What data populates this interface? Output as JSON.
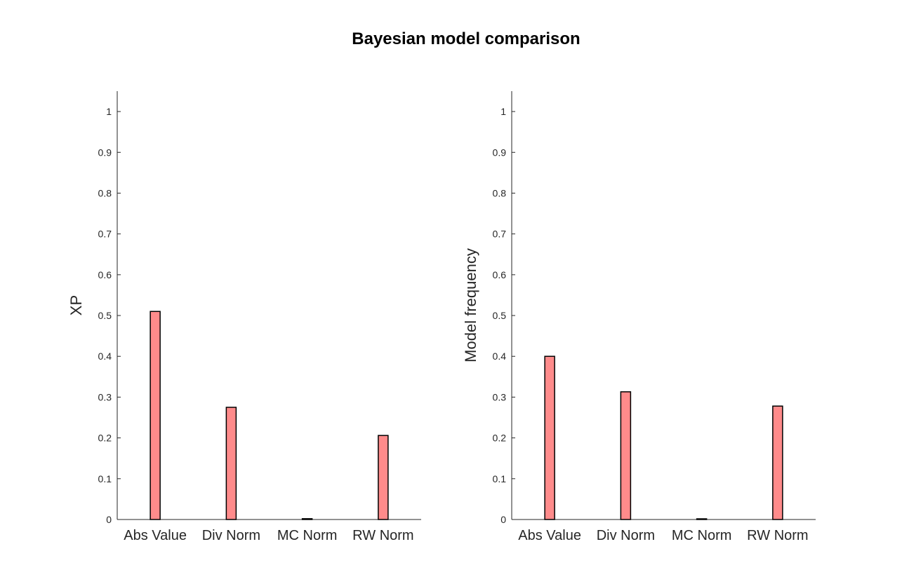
{
  "figure": {
    "title": "Bayesian model comparison"
  },
  "chart_data": [
    {
      "type": "bar",
      "categories": [
        "Abs Value",
        "Div Norm",
        "MC Norm",
        "RW Norm"
      ],
      "values": [
        0.51,
        0.275,
        0.002,
        0.206
      ],
      "xlabel": "",
      "ylabel": "XP",
      "ylim": [
        0,
        1.05
      ],
      "yticks": [
        0,
        0.1,
        0.2,
        0.3,
        0.4,
        0.5,
        0.6,
        0.7,
        0.8,
        0.9,
        1
      ],
      "ytick_labels": [
        "0",
        "0.1",
        "0.2",
        "0.3",
        "0.4",
        "0.5",
        "0.6",
        "0.7",
        "0.8",
        "0.9",
        "1"
      ],
      "grid": false,
      "bar_color": "#ff8b8b",
      "edge_color": "#000000"
    },
    {
      "type": "bar",
      "categories": [
        "Abs Value",
        "Div Norm",
        "MC Norm",
        "RW Norm"
      ],
      "values": [
        0.4,
        0.313,
        0.0,
        0.278
      ],
      "xlabel": "",
      "ylabel": "Model frequency",
      "ylim": [
        0,
        1.05
      ],
      "yticks": [
        0,
        0.1,
        0.2,
        0.3,
        0.4,
        0.5,
        0.6,
        0.7,
        0.8,
        0.9,
        1
      ],
      "ytick_labels": [
        "0",
        "0.1",
        "0.2",
        "0.3",
        "0.4",
        "0.5",
        "0.6",
        "0.7",
        "0.8",
        "0.9",
        "1"
      ],
      "grid": false,
      "bar_color": "#ff8b8b",
      "edge_color": "#000000"
    }
  ]
}
